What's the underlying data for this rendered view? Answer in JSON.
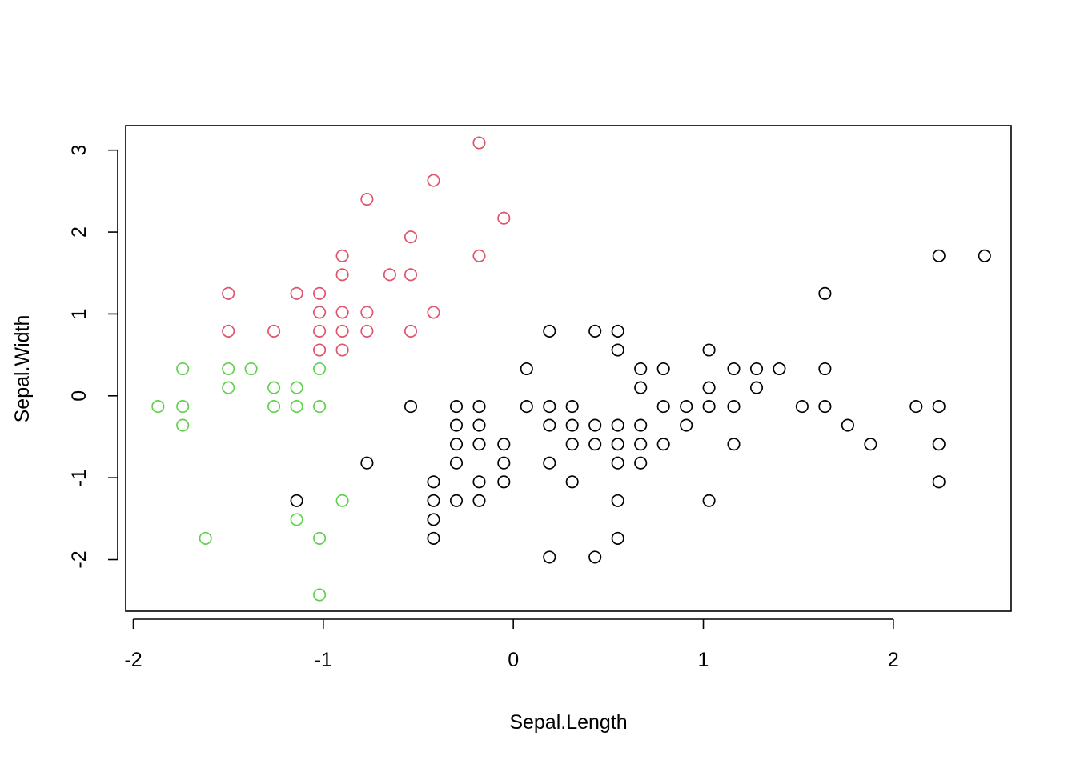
{
  "chart_data": {
    "type": "scatter",
    "xlabel": "Sepal.Length",
    "ylabel": "Sepal.Width",
    "xlim": [
      -2.04,
      2.62
    ],
    "ylim": [
      -2.63,
      3.3
    ],
    "x_ticks": [
      -2,
      -1,
      0,
      1,
      2
    ],
    "x_tick_labels": [
      "-2",
      "-1",
      "0",
      "1",
      "2"
    ],
    "y_ticks": [
      -2,
      -1,
      0,
      1,
      2,
      3
    ],
    "y_tick_labels": [
      "-2",
      "-1",
      "0",
      "1",
      "2",
      "3"
    ],
    "grid": false,
    "series": [
      {
        "color": "#000000",
        "points": [
          [
            -1.14,
            -1.28
          ],
          [
            -0.77,
            -0.82
          ],
          [
            -0.54,
            -0.13
          ],
          [
            -0.42,
            -1.05
          ],
          [
            -0.42,
            -1.28
          ],
          [
            -0.42,
            -1.51
          ],
          [
            -0.42,
            -1.74
          ],
          [
            -0.3,
            -0.13
          ],
          [
            -0.3,
            -0.36
          ],
          [
            -0.3,
            -0.59
          ],
          [
            -0.3,
            -0.82
          ],
          [
            -0.3,
            -1.28
          ],
          [
            -0.18,
            -0.13
          ],
          [
            -0.18,
            -0.36
          ],
          [
            -0.18,
            -0.59
          ],
          [
            -0.18,
            -1.05
          ],
          [
            -0.18,
            -1.28
          ],
          [
            -0.05,
            -0.59
          ],
          [
            -0.05,
            -0.82
          ],
          [
            -0.05,
            -1.05
          ],
          [
            0.07,
            0.33
          ],
          [
            0.07,
            -0.13
          ],
          [
            0.19,
            0.79
          ],
          [
            0.19,
            -0.13
          ],
          [
            0.19,
            -0.36
          ],
          [
            0.19,
            -0.82
          ],
          [
            0.19,
            -1.97
          ],
          [
            0.31,
            -0.13
          ],
          [
            0.31,
            -0.36
          ],
          [
            0.31,
            -0.59
          ],
          [
            0.31,
            -1.05
          ],
          [
            0.43,
            0.79
          ],
          [
            0.43,
            -0.36
          ],
          [
            0.43,
            -0.59
          ],
          [
            0.43,
            -1.97
          ],
          [
            0.55,
            0.79
          ],
          [
            0.55,
            0.56
          ],
          [
            0.55,
            -0.36
          ],
          [
            0.55,
            -0.59
          ],
          [
            0.55,
            -0.82
          ],
          [
            0.55,
            -1.28
          ],
          [
            0.55,
            -1.74
          ],
          [
            0.67,
            0.33
          ],
          [
            0.67,
            0.1
          ],
          [
            0.67,
            -0.36
          ],
          [
            0.67,
            -0.59
          ],
          [
            0.67,
            -0.82
          ],
          [
            0.79,
            0.33
          ],
          [
            0.79,
            -0.13
          ],
          [
            0.79,
            -0.59
          ],
          [
            0.91,
            -0.13
          ],
          [
            0.91,
            -0.36
          ],
          [
            1.03,
            0.56
          ],
          [
            1.03,
            0.1
          ],
          [
            1.03,
            -0.13
          ],
          [
            1.03,
            -1.28
          ],
          [
            1.16,
            0.33
          ],
          [
            1.16,
            -0.13
          ],
          [
            1.16,
            -0.59
          ],
          [
            1.28,
            0.33
          ],
          [
            1.28,
            0.1
          ],
          [
            1.4,
            0.33
          ],
          [
            1.52,
            -0.13
          ],
          [
            1.64,
            1.25
          ],
          [
            1.64,
            0.33
          ],
          [
            1.64,
            -0.13
          ],
          [
            1.76,
            -0.36
          ],
          [
            1.88,
            -0.59
          ],
          [
            2.12,
            -0.13
          ],
          [
            2.24,
            1.71
          ],
          [
            2.24,
            -0.13
          ],
          [
            2.24,
            -0.59
          ],
          [
            2.24,
            -1.05
          ],
          [
            2.48,
            1.71
          ]
        ]
      },
      {
        "color": "#DF536B",
        "points": [
          [
            -1.5,
            1.25
          ],
          [
            -1.5,
            0.79
          ],
          [
            -1.26,
            0.79
          ],
          [
            -1.14,
            1.25
          ],
          [
            -1.02,
            1.25
          ],
          [
            -1.02,
            1.02
          ],
          [
            -1.02,
            0.79
          ],
          [
            -1.02,
            0.56
          ],
          [
            -0.9,
            1.71
          ],
          [
            -0.9,
            1.48
          ],
          [
            -0.9,
            1.02
          ],
          [
            -0.9,
            0.79
          ],
          [
            -0.9,
            0.56
          ],
          [
            -0.77,
            2.4
          ],
          [
            -0.77,
            1.02
          ],
          [
            -0.77,
            0.79
          ],
          [
            -0.65,
            1.48
          ],
          [
            -0.54,
            1.94
          ],
          [
            -0.54,
            1.48
          ],
          [
            -0.54,
            0.79
          ],
          [
            -0.42,
            2.63
          ],
          [
            -0.42,
            1.02
          ],
          [
            -0.18,
            3.09
          ],
          [
            -0.18,
            1.71
          ],
          [
            -0.05,
            2.17
          ]
        ]
      },
      {
        "color": "#61D04F",
        "points": [
          [
            -1.87,
            -0.13
          ],
          [
            -1.74,
            0.33
          ],
          [
            -1.74,
            -0.13
          ],
          [
            -1.74,
            -0.36
          ],
          [
            -1.62,
            -1.74
          ],
          [
            -1.5,
            0.33
          ],
          [
            -1.5,
            0.1
          ],
          [
            -1.38,
            0.33
          ],
          [
            -1.26,
            0.1
          ],
          [
            -1.26,
            -0.13
          ],
          [
            -1.14,
            0.1
          ],
          [
            -1.14,
            -0.13
          ],
          [
            -1.14,
            -1.51
          ],
          [
            -1.02,
            0.33
          ],
          [
            -1.02,
            -0.13
          ],
          [
            -1.02,
            -1.74
          ],
          [
            -1.02,
            -2.43
          ],
          [
            -0.9,
            -1.28
          ]
        ]
      }
    ]
  }
}
